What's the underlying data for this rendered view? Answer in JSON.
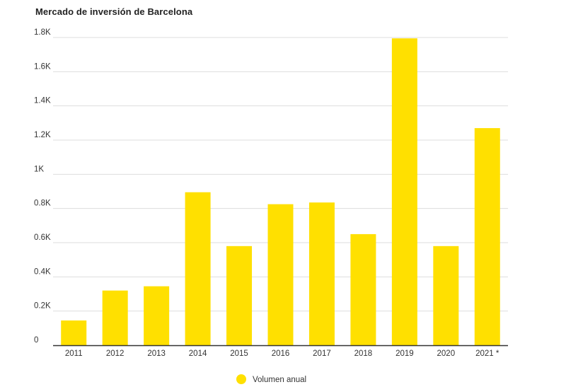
{
  "chart_data": {
    "type": "bar",
    "title": "Mercado de inversión de Barcelona",
    "categories": [
      "2011",
      "2012",
      "2013",
      "2014",
      "2015",
      "2016",
      "2017",
      "2018",
      "2019",
      "2020",
      "2021 *"
    ],
    "series": [
      {
        "name": "Volumen anual",
        "values": [
          145,
          320,
          345,
          895,
          580,
          825,
          835,
          650,
          1795,
          580,
          1270
        ],
        "color": "#FFE000"
      }
    ],
    "ylim": [
      0,
      1800
    ],
    "yticks": [
      0,
      200,
      400,
      600,
      800,
      1000,
      1200,
      1400,
      1600,
      1800
    ],
    "ytick_labels": [
      "0",
      "0.2K",
      "0.4K",
      "0.6K",
      "0.8K",
      "1K",
      "1.2K",
      "1.4K",
      "1.6K",
      "1.8K"
    ],
    "xlabel": "",
    "ylabel": "",
    "grid": true,
    "legend_position": "bottom-center"
  }
}
